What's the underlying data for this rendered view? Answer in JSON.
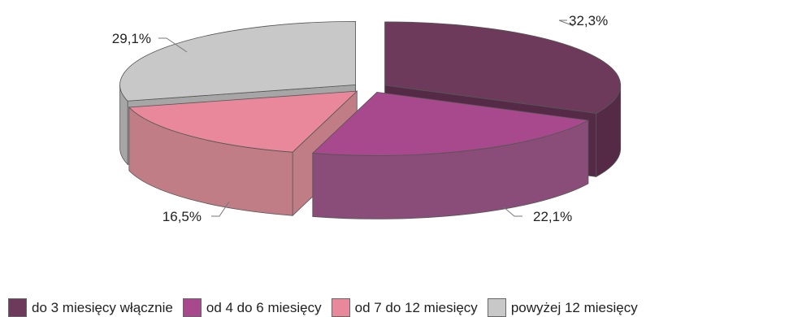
{
  "chart_data": {
    "type": "pie",
    "title": "",
    "categories": [
      "do 3 miesięcy włącznie",
      "od 4 do 6 miesięcy",
      "od 7 do 12 miesięcy",
      "powyżej 12 miesięcy"
    ],
    "values": [
      32.3,
      22.1,
      16.5,
      29.1
    ],
    "labels": [
      "32,3%",
      "22,1%",
      "16,5%",
      "29,1%"
    ],
    "colors": [
      "#6e3a5c",
      "#a8498d",
      "#e8889a",
      "#c8c8c8"
    ],
    "side_colors": [
      "#552a47",
      "#8a4d79",
      "#c07d85",
      "#a6a6a6"
    ],
    "style": "3d-exploded",
    "legend_position": "bottom"
  }
}
